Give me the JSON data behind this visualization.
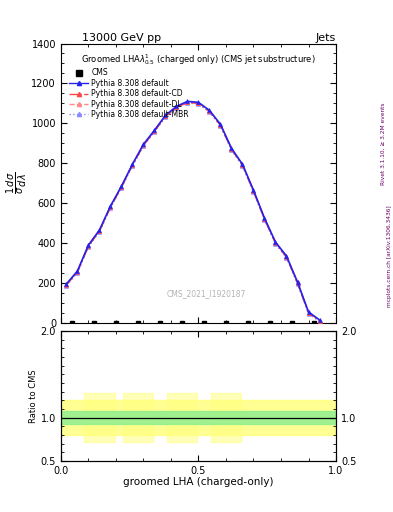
{
  "title_top_left": "13000 GeV pp",
  "title_top_right": "Jets",
  "plot_title": "Groomed LHA$\\lambda^{1}_{0.5}$ (charged only) (CMS jet substructure)",
  "xlabel": "groomed LHA (charged-only)",
  "ylabel_ratio": "Ratio to CMS",
  "watermark": "CMS_2021_I1920187",
  "right_label1": "Rivet 3.1.10, ≥ 3.2M events",
  "right_label2": "mcplots.cern.ch [arXiv:1306.3436]",
  "x_curve": [
    0.02,
    0.06,
    0.1,
    0.14,
    0.18,
    0.22,
    0.26,
    0.3,
    0.34,
    0.38,
    0.42,
    0.46,
    0.5,
    0.54,
    0.58,
    0.62,
    0.66,
    0.7,
    0.74,
    0.78,
    0.82,
    0.86,
    0.9,
    0.94
  ],
  "default_y": [
    195,
    260,
    390,
    465,
    585,
    685,
    795,
    895,
    965,
    1040,
    1085,
    1110,
    1105,
    1065,
    995,
    875,
    795,
    665,
    525,
    405,
    335,
    205,
    55,
    15
  ],
  "cd_y": [
    190,
    255,
    385,
    460,
    580,
    680,
    790,
    890,
    960,
    1035,
    1080,
    1105,
    1100,
    1060,
    990,
    870,
    790,
    660,
    520,
    400,
    330,
    200,
    50,
    10
  ],
  "dl_y": [
    193,
    258,
    388,
    463,
    583,
    683,
    793,
    893,
    963,
    1038,
    1083,
    1108,
    1103,
    1063,
    993,
    873,
    793,
    663,
    523,
    403,
    333,
    203,
    52,
    12
  ],
  "mbr_y": [
    187,
    252,
    382,
    457,
    577,
    677,
    787,
    887,
    957,
    1032,
    1077,
    1102,
    1097,
    1057,
    987,
    867,
    787,
    657,
    517,
    397,
    327,
    197,
    47,
    7
  ],
  "ylim_main": [
    0,
    1400
  ],
  "yticks_main": [
    0,
    200,
    400,
    600,
    800,
    1000,
    1200,
    1400
  ],
  "ylim_ratio": [
    0.5,
    2.0
  ],
  "yticks_ratio": [
    0.5,
    1.0,
    2.0
  ],
  "xlim": [
    0,
    1
  ],
  "xticks": [
    0.0,
    0.5,
    1.0
  ],
  "color_default": "#2222EE",
  "color_cd": "#FF4444",
  "color_dl": "#FF8888",
  "color_mbr": "#8888FF",
  "color_cms": "#000000",
  "ratio_green": "#90EE90",
  "ratio_yellow": "#FFFF80"
}
